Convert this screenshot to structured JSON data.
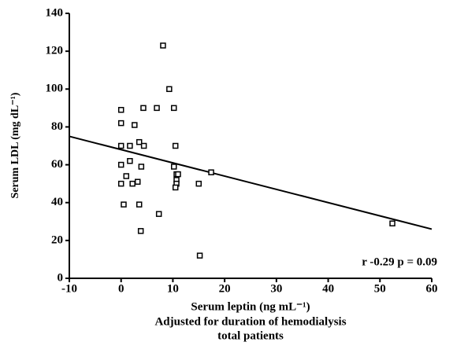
{
  "chart_data": {
    "type": "scatter",
    "xlabel": "Serum leptin (ng mL⁻¹)",
    "ylabel": "Serum LDL (mg dL⁻¹)",
    "subtitle": [
      "Adjusted for duration of hemodialysis",
      "total patients"
    ],
    "annotation": "r -0.29 p = 0.09",
    "x": [
      0,
      0,
      0,
      0,
      0,
      0.5,
      1,
      1.7,
      1.7,
      2.6,
      2.2,
      3.2,
      3.5,
      4.4,
      3.5,
      3.9,
      4.3,
      3.8,
      6.9,
      7.3,
      8.1,
      9.3,
      10.2,
      10.5,
      10.2,
      10.7,
      11,
      10.7,
      10.7,
      10.5,
      15,
      15.2,
      17.4,
      52.4
    ],
    "values": [
      89,
      82,
      70,
      60,
      50,
      39,
      54,
      70,
      62,
      81,
      50,
      51,
      72,
      70,
      39,
      59,
      90,
      25,
      90,
      34,
      123,
      100,
      90,
      70,
      59,
      55,
      55,
      52,
      50,
      48,
      50,
      12,
      56,
      29
    ],
    "fit": {
      "x": [
        -10,
        60
      ],
      "y": [
        75,
        26
      ]
    },
    "color": "#000000",
    "xlim": [
      -10,
      60
    ],
    "xticks": [
      -10,
      0,
      10,
      20,
      30,
      40,
      50,
      60
    ],
    "ylim": [
      0,
      140
    ],
    "yticks": [
      0,
      20,
      40,
      60,
      80,
      100,
      120,
      140
    ]
  }
}
